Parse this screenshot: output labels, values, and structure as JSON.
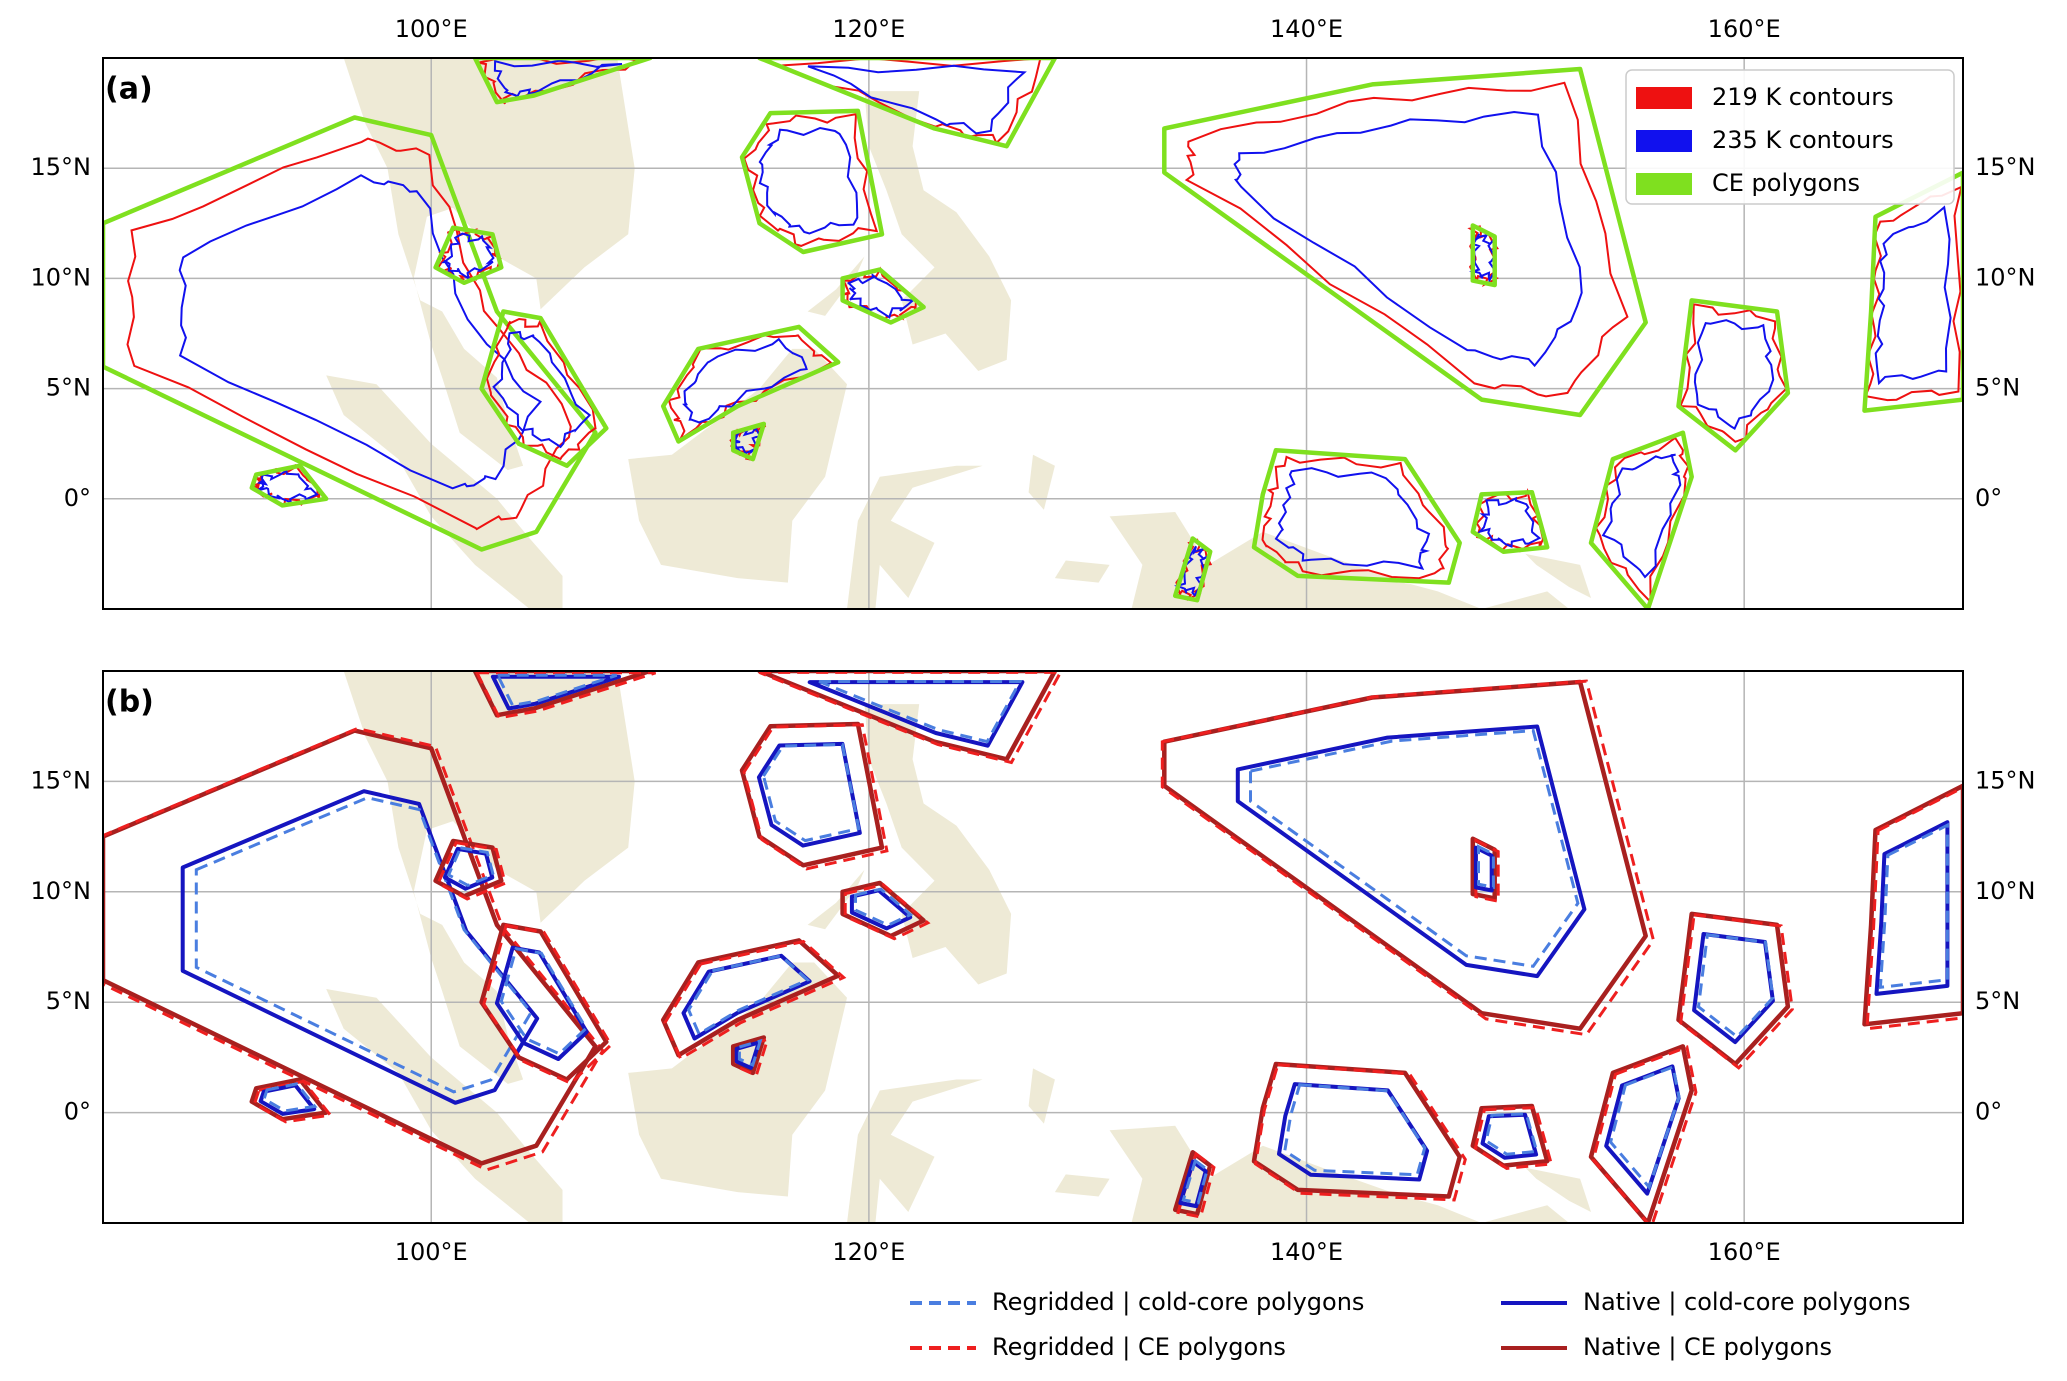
{
  "panels": [
    {
      "label": "(a)",
      "legend": [
        "219 K contours",
        "235 K contours",
        "CE polygons"
      ]
    },
    {
      "label": "(b)"
    }
  ],
  "lon_ticks": [
    {
      "value": 100,
      "label": "100°E"
    },
    {
      "value": 120,
      "label": "120°E"
    },
    {
      "value": 140,
      "label": "140°E"
    },
    {
      "value": 160,
      "label": "160°E"
    }
  ],
  "lat_ticks": [
    {
      "value": 0,
      "label": "0°"
    },
    {
      "value": 5,
      "label": "5°N"
    },
    {
      "value": 10,
      "label": "10°N"
    },
    {
      "value": 15,
      "label": "15°N"
    }
  ],
  "legend": [
    "Regridded | cold-core polygons",
    "Regridded | CE polygons",
    "Native | cold-core polygons",
    "Native | CE polygons"
  ]
}
